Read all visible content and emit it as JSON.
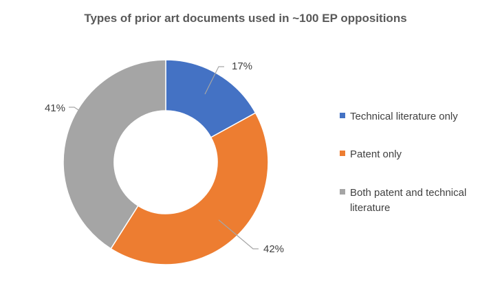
{
  "chart_data": {
    "type": "pie",
    "variant": "donut",
    "title": "Types of prior art documents used in ~100 EP oppositions",
    "categories": [
      "Technical literature only",
      "Patent only",
      "Both patent and technical literature"
    ],
    "values": [
      17,
      42,
      41
    ],
    "labels": [
      "17%",
      "42%",
      "41%"
    ],
    "colors": [
      "#4472c4",
      "#ed7d31",
      "#a5a5a5"
    ],
    "legend_position": "right"
  }
}
